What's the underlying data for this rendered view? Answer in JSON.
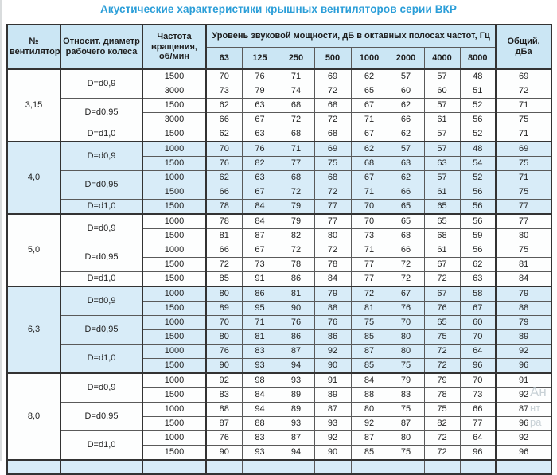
{
  "title": "Акустические характеристики крышных вентиляторов серии ВКР",
  "colors": {
    "title_accent": "#2b9ed8",
    "header_bg": "#cbe6f4",
    "tint_row_bg": "#d8ecf8",
    "border_dark": "#333333",
    "text": "#222222"
  },
  "table": {
    "headers": {
      "fan": "№ вентилятора",
      "diameter": "Относит. диаметр рабочего колеса",
      "rpm": "Частота вращения, об/мин",
      "spl": "Уровень звуковой мощности, дБ в октавных полосах частот, Гц",
      "total": "Общий, дБа"
    },
    "freq_labels": [
      "63",
      "125",
      "250",
      "500",
      "1000",
      "2000",
      "4000",
      "8000"
    ],
    "sections": [
      {
        "fan": "3,15",
        "tint": false,
        "groups": [
          {
            "d": "D=d0,9",
            "rows": [
              {
                "rpm": "1500",
                "levels": [
                  "70",
                  "76",
                  "71",
                  "69",
                  "62",
                  "57",
                  "57",
                  "48"
                ],
                "total": "69"
              },
              {
                "rpm": "3000",
                "levels": [
                  "73",
                  "79",
                  "74",
                  "72",
                  "65",
                  "60",
                  "60",
                  "51"
                ],
                "total": "72"
              }
            ]
          },
          {
            "d": "D=d0,95",
            "rows": [
              {
                "rpm": "1500",
                "levels": [
                  "62",
                  "63",
                  "68",
                  "68",
                  "67",
                  "62",
                  "57",
                  "52"
                ],
                "total": "71"
              },
              {
                "rpm": "3000",
                "levels": [
                  "66",
                  "67",
                  "72",
                  "72",
                  "71",
                  "66",
                  "61",
                  "56"
                ],
                "total": "75"
              }
            ]
          },
          {
            "d": "D=d1,0",
            "rows": [
              {
                "rpm": "1500",
                "levels": [
                  "62",
                  "63",
                  "68",
                  "68",
                  "67",
                  "62",
                  "57",
                  "52"
                ],
                "total": "71"
              }
            ]
          }
        ]
      },
      {
        "fan": "4,0",
        "tint": true,
        "groups": [
          {
            "d": "D=d0,9",
            "rows": [
              {
                "rpm": "1000",
                "levels": [
                  "70",
                  "76",
                  "71",
                  "69",
                  "62",
                  "57",
                  "57",
                  "48"
                ],
                "total": "69"
              },
              {
                "rpm": "1500",
                "levels": [
                  "76",
                  "82",
                  "77",
                  "75",
                  "68",
                  "63",
                  "63",
                  "54"
                ],
                "total": "75"
              }
            ]
          },
          {
            "d": "D=d0,95",
            "rows": [
              {
                "rpm": "1000",
                "levels": [
                  "62",
                  "63",
                  "68",
                  "68",
                  "67",
                  "62",
                  "57",
                  "52"
                ],
                "total": "71"
              },
              {
                "rpm": "1500",
                "levels": [
                  "66",
                  "67",
                  "72",
                  "72",
                  "71",
                  "66",
                  "61",
                  "56"
                ],
                "total": "75"
              }
            ]
          },
          {
            "d": "D=d1,0",
            "rows": [
              {
                "rpm": "1500",
                "levels": [
                  "78",
                  "84",
                  "79",
                  "77",
                  "70",
                  "65",
                  "65",
                  "56"
                ],
                "total": "77"
              }
            ]
          }
        ]
      },
      {
        "fan": "5,0",
        "tint": false,
        "groups": [
          {
            "d": "D=d0,9",
            "rows": [
              {
                "rpm": "1000",
                "levels": [
                  "78",
                  "84",
                  "79",
                  "77",
                  "70",
                  "65",
                  "65",
                  "56"
                ],
                "total": "77"
              },
              {
                "rpm": "1500",
                "levels": [
                  "81",
                  "87",
                  "82",
                  "80",
                  "73",
                  "68",
                  "68",
                  "59"
                ],
                "total": "80"
              }
            ]
          },
          {
            "d": "D=d0,95",
            "rows": [
              {
                "rpm": "1000",
                "levels": [
                  "66",
                  "67",
                  "72",
                  "72",
                  "71",
                  "66",
                  "61",
                  "56"
                ],
                "total": "75"
              },
              {
                "rpm": "1500",
                "levels": [
                  "72",
                  "73",
                  "78",
                  "78",
                  "77",
                  "72",
                  "67",
                  "62"
                ],
                "total": "81"
              }
            ]
          },
          {
            "d": "D=d1,0",
            "rows": [
              {
                "rpm": "1500",
                "levels": [
                  "85",
                  "91",
                  "86",
                  "84",
                  "77",
                  "72",
                  "72",
                  "63"
                ],
                "total": "84"
              }
            ]
          }
        ]
      },
      {
        "fan": "6,3",
        "tint": true,
        "groups": [
          {
            "d": "D=d0,9",
            "rows": [
              {
                "rpm": "1000",
                "levels": [
                  "80",
                  "86",
                  "81",
                  "79",
                  "72",
                  "67",
                  "67",
                  "58"
                ],
                "total": "79"
              },
              {
                "rpm": "1500",
                "levels": [
                  "89",
                  "95",
                  "90",
                  "88",
                  "81",
                  "76",
                  "76",
                  "67"
                ],
                "total": "88"
              }
            ]
          },
          {
            "d": "D=d0,95",
            "rows": [
              {
                "rpm": "1000",
                "levels": [
                  "70",
                  "71",
                  "76",
                  "76",
                  "75",
                  "70",
                  "65",
                  "60"
                ],
                "total": "79"
              },
              {
                "rpm": "1500",
                "levels": [
                  "80",
                  "81",
                  "86",
                  "86",
                  "85",
                  "80",
                  "75",
                  "70"
                ],
                "total": "89"
              }
            ]
          },
          {
            "d": "D=d1,0",
            "rows": [
              {
                "rpm": "1000",
                "levels": [
                  "76",
                  "83",
                  "87",
                  "92",
                  "87",
                  "80",
                  "72",
                  "64"
                ],
                "total": "92"
              },
              {
                "rpm": "1500",
                "levels": [
                  "90",
                  "93",
                  "94",
                  "90",
                  "85",
                  "75",
                  "72",
                  "96"
                ],
                "total": "96"
              }
            ]
          }
        ]
      },
      {
        "fan": "8,0",
        "tint": false,
        "groups": [
          {
            "d": "D=d0,9",
            "rows": [
              {
                "rpm": "1000",
                "levels": [
                  "92",
                  "98",
                  "93",
                  "91",
                  "84",
                  "79",
                  "79",
                  "70"
                ],
                "total": "91"
              },
              {
                "rpm": "1500",
                "levels": [
                  "83",
                  "84",
                  "89",
                  "89",
                  "88",
                  "83",
                  "78",
                  "73"
                ],
                "total": "92"
              }
            ]
          },
          {
            "d": "D=d0,95",
            "rows": [
              {
                "rpm": "1000",
                "levels": [
                  "88",
                  "94",
                  "89",
                  "87",
                  "80",
                  "75",
                  "75",
                  "66"
                ],
                "total": "87"
              },
              {
                "rpm": "1500",
                "levels": [
                  "87",
                  "88",
                  "93",
                  "93",
                  "92",
                  "87",
                  "82",
                  "77"
                ],
                "total": "96"
              }
            ]
          },
          {
            "d": "D=d1,0",
            "rows": [
              {
                "rpm": "1000",
                "levels": [
                  "76",
                  "83",
                  "87",
                  "92",
                  "87",
                  "80",
                  "72",
                  "64"
                ],
                "total": "92"
              },
              {
                "rpm": "1500",
                "levels": [
                  "90",
                  "93",
                  "94",
                  "90",
                  "85",
                  "75",
                  "72",
                  "96"
                ],
                "total": "96"
              }
            ]
          }
        ]
      }
    ]
  },
  "watermark_fragments": {
    "line1": "Ан",
    "line2": "нт",
    "line3": "ра"
  }
}
